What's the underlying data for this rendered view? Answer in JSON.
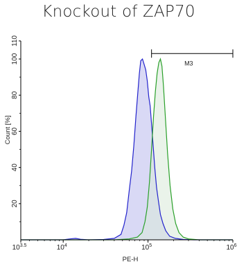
{
  "chart_data": {
    "type": "area",
    "title": "Knockout of ZAP70",
    "xlabel": "PE-H",
    "ylabel": "Count [%]",
    "xscale": "log",
    "xlim": [
      3162,
      1000000
    ],
    "ylim": [
      0,
      110
    ],
    "x_ticks": [
      {
        "value": 3162,
        "base": "10",
        "exp": "3.5"
      },
      {
        "value": 10000,
        "base": "10",
        "exp": "4"
      },
      {
        "value": 100000,
        "base": "10",
        "exp": "5"
      },
      {
        "value": 1000000,
        "base": "10",
        "exp": "6"
      }
    ],
    "y_ticks": [
      "20",
      "40",
      "60",
      "80",
      "100",
      "110"
    ],
    "marker": {
      "label": "M3",
      "x_start": 110000,
      "x_end": 1000000,
      "y": 103
    },
    "series": [
      {
        "color": "#2323cc",
        "fill": "#d5d5f4",
        "points": [
          [
            3162,
            0
          ],
          [
            10000,
            0
          ],
          [
            12000,
            0.5
          ],
          [
            14000,
            0.8
          ],
          [
            16000,
            0.3
          ],
          [
            20000,
            0
          ],
          [
            30000,
            0.2
          ],
          [
            40000,
            0.8
          ],
          [
            48000,
            3
          ],
          [
            52000,
            8
          ],
          [
            56000,
            15
          ],
          [
            60000,
            27
          ],
          [
            64000,
            38
          ],
          [
            68000,
            52
          ],
          [
            72000,
            68
          ],
          [
            76000,
            82
          ],
          [
            79000,
            92
          ],
          [
            82000,
            99
          ],
          [
            86000,
            100
          ],
          [
            90000,
            97
          ],
          [
            94000,
            94
          ],
          [
            98000,
            88
          ],
          [
            102000,
            79
          ],
          [
            106000,
            74
          ],
          [
            110000,
            64
          ],
          [
            115000,
            52
          ],
          [
            120000,
            40
          ],
          [
            126000,
            29
          ],
          [
            132000,
            22
          ],
          [
            140000,
            14
          ],
          [
            150000,
            9
          ],
          [
            162000,
            5
          ],
          [
            180000,
            2
          ],
          [
            210000,
            0.8
          ],
          [
            260000,
            0.2
          ],
          [
            350000,
            0
          ],
          [
            1000000,
            0
          ]
        ]
      },
      {
        "color": "#2aa02a",
        "fill": "#d8ead8",
        "points": [
          [
            3162,
            0
          ],
          [
            40000,
            0
          ],
          [
            60000,
            0.5
          ],
          [
            75000,
            1.5
          ],
          [
            85000,
            4
          ],
          [
            92000,
            10
          ],
          [
            98000,
            18
          ],
          [
            104000,
            32
          ],
          [
            110000,
            50
          ],
          [
            116000,
            68
          ],
          [
            122000,
            82
          ],
          [
            128000,
            92
          ],
          [
            134000,
            98
          ],
          [
            140000,
            100
          ],
          [
            146000,
            96
          ],
          [
            152000,
            85
          ],
          [
            160000,
            68
          ],
          [
            170000,
            48
          ],
          [
            182000,
            30
          ],
          [
            196000,
            17
          ],
          [
            212000,
            9
          ],
          [
            232000,
            4
          ],
          [
            260000,
            1.5
          ],
          [
            300000,
            0.5
          ],
          [
            400000,
            0
          ],
          [
            1000000,
            0
          ]
        ]
      }
    ],
    "grid": false,
    "legend": "none"
  }
}
